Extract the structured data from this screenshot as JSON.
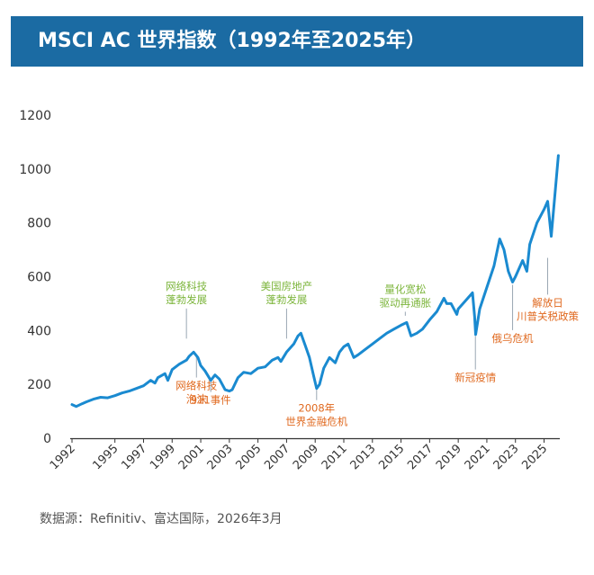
{
  "header": {
    "title": "MSCI AC 世界指数（1992年至2025年）"
  },
  "footer": {
    "source": "数据源：Refinitiv、富达国际，2026年3月"
  },
  "colors": {
    "header_bg": "#1b6ba3",
    "line": "#1a8ad0",
    "green": "#7cb53b",
    "orange": "#e0691f"
  },
  "chart_data": {
    "type": "line",
    "title": "MSCI AC 世界指数（1992年至2025年）",
    "xlabel": "",
    "ylabel": "",
    "xlim": [
      1992,
      2026.1
    ],
    "ylim": [
      0,
      1200
    ],
    "yticks": [
      0,
      200,
      400,
      600,
      800,
      1000,
      1200
    ],
    "xticks": [
      "1992",
      "1995",
      "1997",
      "1999",
      "2001",
      "2003",
      "2005",
      "2007",
      "2009",
      "2011",
      "2013",
      "2015",
      "2017",
      "2019",
      "2021",
      "2023",
      "2025"
    ],
    "grid": false,
    "series": [
      {
        "name": "",
        "x": [
          1992.0,
          1992.3,
          1992.7,
          1993.0,
          1993.5,
          1994.0,
          1994.5,
          1995.0,
          1995.5,
          1996.0,
          1996.5,
          1997.0,
          1997.5,
          1997.8,
          1998.0,
          1998.5,
          1998.7,
          1999.0,
          1999.5,
          2000.0,
          2000.2,
          2000.5,
          2000.8,
          2001.0,
          2001.3,
          2001.7,
          2002.0,
          2002.3,
          2002.7,
          2003.0,
          2003.2,
          2003.6,
          2004.0,
          2004.5,
          2005.0,
          2005.5,
          2006.0,
          2006.4,
          2006.6,
          2007.0,
          2007.5,
          2007.8,
          2008.0,
          2008.3,
          2008.6,
          2008.9,
          2009.1,
          2009.3,
          2009.6,
          2010.0,
          2010.4,
          2010.7,
          2011.0,
          2011.3,
          2011.7,
          2012.0,
          2012.5,
          2013.0,
          2013.5,
          2014.0,
          2014.5,
          2015.0,
          2015.4,
          2015.7,
          2016.1,
          2016.5,
          2017.0,
          2017.5,
          2018.0,
          2018.2,
          2018.5,
          2018.9,
          2019.0,
          2019.5,
          2020.0,
          2020.15,
          2020.22,
          2020.5,
          2021.0,
          2021.5,
          2021.9,
          2022.2,
          2022.5,
          2022.8,
          2023.0,
          2023.5,
          2023.8,
          2024.0,
          2024.5,
          2025.0,
          2025.25,
          2025.5,
          2026.0
        ],
        "values": [
          125,
          118,
          128,
          135,
          145,
          152,
          150,
          158,
          168,
          175,
          185,
          195,
          215,
          205,
          225,
          240,
          215,
          255,
          275,
          290,
          305,
          320,
          300,
          270,
          250,
          215,
          235,
          220,
          180,
          175,
          180,
          225,
          245,
          240,
          260,
          265,
          290,
          300,
          285,
          320,
          350,
          380,
          390,
          345,
          300,
          230,
          185,
          200,
          260,
          300,
          280,
          320,
          340,
          350,
          300,
          310,
          330,
          350,
          370,
          390,
          405,
          420,
          430,
          380,
          390,
          405,
          440,
          470,
          520,
          500,
          500,
          460,
          480,
          510,
          540,
          450,
          385,
          480,
          560,
          640,
          740,
          700,
          620,
          580,
          600,
          660,
          620,
          720,
          800,
          850,
          880,
          750,
          1050
        ]
      }
    ],
    "annotations": [
      {
        "text": [
          "网络科技",
          "蓬勃发展"
        ],
        "color": "green",
        "x": 2000.0,
        "y_point": 370,
        "y_label": 552
      },
      {
        "text": [
          "网络科技",
          "泡沫"
        ],
        "color": "orange",
        "x": 2000.7,
        "y_point": 310,
        "y_label": 182
      },
      {
        "text": [
          "911事件"
        ],
        "color": "orange",
        "x": 2001.7,
        "y_point": 210,
        "y_label": 128
      },
      {
        "text": [
          "美国房地产",
          "蓬勃发展"
        ],
        "color": "green",
        "x": 2007.0,
        "y_point": 370,
        "y_label": 552
      },
      {
        "text": [
          "2008年",
          "世界金融危机"
        ],
        "color": "orange",
        "x": 2009.1,
        "y_point": 180,
        "y_label": 98
      },
      {
        "text": [
          "量化宽松",
          "驱动再通胀"
        ],
        "color": "green",
        "x": 2015.3,
        "y_point": 455,
        "y_label": 540
      },
      {
        "text": [
          "新冠疫情"
        ],
        "color": "orange",
        "x": 2020.2,
        "y_point": 380,
        "y_label": 212
      },
      {
        "text": [
          "俄乌危机"
        ],
        "color": "orange",
        "x": 2022.8,
        "y_point": 570,
        "y_label": 358
      },
      {
        "text": [
          "解放日",
          "川普关税政策"
        ],
        "color": "orange",
        "x": 2025.25,
        "y_point": 670,
        "y_label": 490
      }
    ]
  }
}
